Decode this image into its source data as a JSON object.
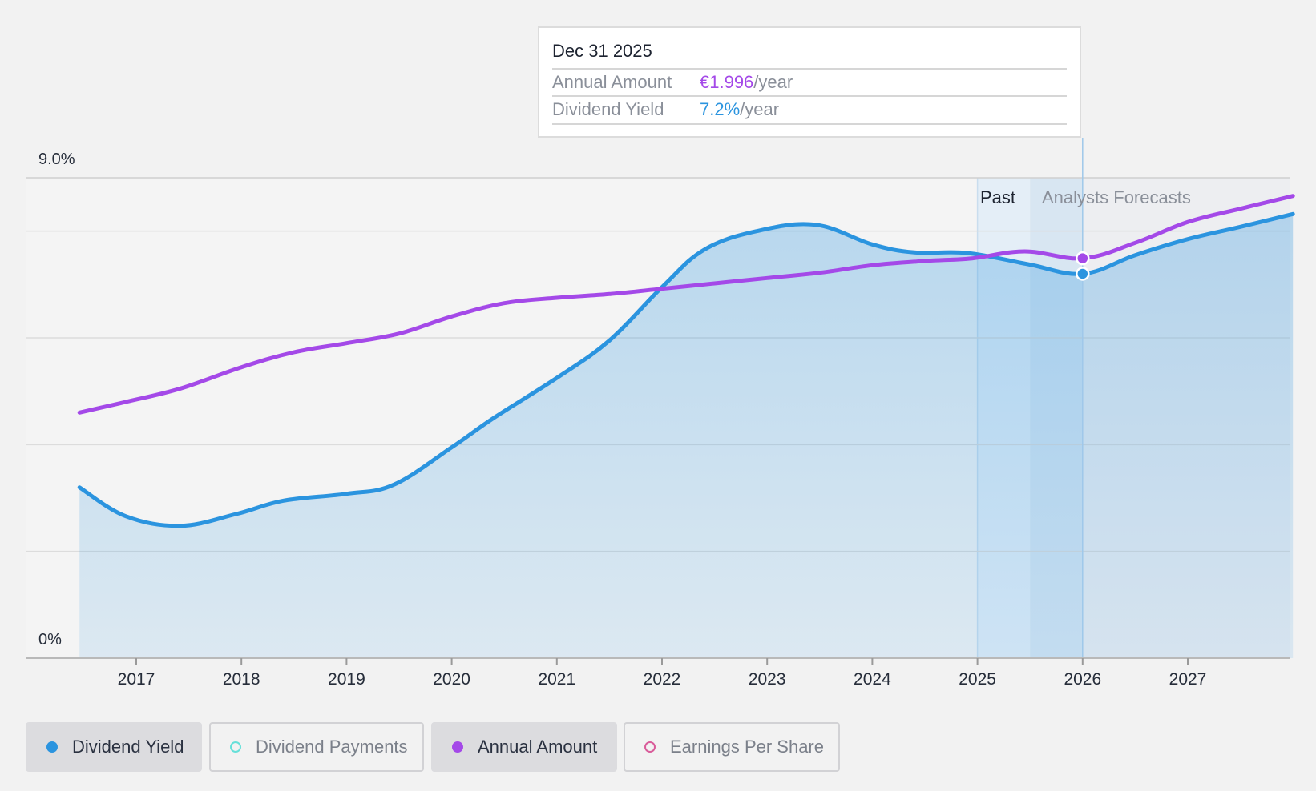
{
  "chart_data": {
    "type": "line",
    "y_axis": {
      "top_label": "9.0%",
      "bottom_label": "0%",
      "ylim": [
        0,
        9.0
      ],
      "gridlines": [
        0,
        2,
        4,
        6,
        8,
        9
      ]
    },
    "x_axis": {
      "ticks": [
        "2017",
        "2018",
        "2019",
        "2020",
        "2021",
        "2022",
        "2023",
        "2024",
        "2025",
        "2026",
        "2027"
      ],
      "xlim": [
        2016.0,
        2028.0
      ]
    },
    "regions": {
      "past_label": "Past",
      "forecast_label": "Analysts Forecasts",
      "past_start": 2025.0,
      "forecast_start": 2025.5
    },
    "series": [
      {
        "name": "Dividend Yield",
        "color": "#2b94df",
        "filled": true,
        "points": [
          [
            2016.46,
            3.2
          ],
          [
            2016.9,
            2.66
          ],
          [
            2017.42,
            2.48
          ],
          [
            2017.95,
            2.7
          ],
          [
            2018.4,
            2.95
          ],
          [
            2019.0,
            3.08
          ],
          [
            2019.45,
            3.25
          ],
          [
            2020.0,
            3.95
          ],
          [
            2020.4,
            4.5
          ],
          [
            2021.0,
            5.25
          ],
          [
            2021.5,
            5.95
          ],
          [
            2022.0,
            6.95
          ],
          [
            2022.4,
            7.65
          ],
          [
            2022.9,
            8.0
          ],
          [
            2023.46,
            8.12
          ],
          [
            2024.0,
            7.75
          ],
          [
            2024.4,
            7.6
          ],
          [
            2024.9,
            7.59
          ],
          [
            2025.48,
            7.38
          ],
          [
            2026.0,
            7.2
          ],
          [
            2026.5,
            7.55
          ],
          [
            2027.0,
            7.85
          ],
          [
            2027.5,
            8.08
          ],
          [
            2028.0,
            8.32
          ]
        ]
      },
      {
        "name": "Annual Amount",
        "color": "#a449e8",
        "filled": false,
        "points": [
          [
            2016.46,
            4.6
          ],
          [
            2016.9,
            4.8
          ],
          [
            2017.42,
            5.05
          ],
          [
            2018.0,
            5.45
          ],
          [
            2018.5,
            5.73
          ],
          [
            2019.0,
            5.9
          ],
          [
            2019.5,
            6.08
          ],
          [
            2020.0,
            6.4
          ],
          [
            2020.5,
            6.65
          ],
          [
            2021.0,
            6.75
          ],
          [
            2021.5,
            6.82
          ],
          [
            2022.0,
            6.92
          ],
          [
            2022.5,
            7.02
          ],
          [
            2023.0,
            7.12
          ],
          [
            2023.5,
            7.22
          ],
          [
            2024.0,
            7.36
          ],
          [
            2024.5,
            7.44
          ],
          [
            2024.95,
            7.49
          ],
          [
            2025.45,
            7.62
          ],
          [
            2026.0,
            7.49
          ],
          [
            2026.5,
            7.78
          ],
          [
            2027.0,
            8.17
          ],
          [
            2027.5,
            8.42
          ],
          [
            2028.0,
            8.66
          ]
        ]
      }
    ],
    "highlight": {
      "x": 2026.0,
      "label_date": "Dec 31 2025"
    }
  },
  "tooltip": {
    "date": "Dec 31 2025",
    "rows": [
      {
        "label": "Annual Amount",
        "value": "€1.996",
        "suffix": "/year",
        "color": "#a449e8"
      },
      {
        "label": "Dividend Yield",
        "value": "7.2%",
        "suffix": "/year",
        "color": "#2b94df"
      }
    ]
  },
  "legend": [
    {
      "label": "Dividend Yield",
      "active": true,
      "dot_color": "#2b94df",
      "dot_filled": true
    },
    {
      "label": "Dividend Payments",
      "active": false,
      "dot_color": "#66e0d9",
      "dot_filled": false
    },
    {
      "label": "Annual Amount",
      "active": true,
      "dot_color": "#a449e8",
      "dot_filled": true
    },
    {
      "label": "Earnings Per Share",
      "active": false,
      "dot_color": "#d95c9a",
      "dot_filled": false
    }
  ]
}
